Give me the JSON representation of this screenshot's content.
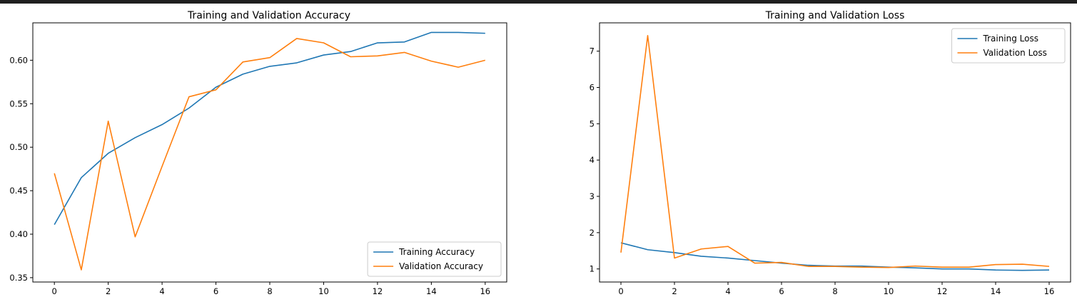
{
  "colors": {
    "training": "#1f77b4",
    "validation": "#ff7f0e"
  },
  "chart_data": [
    {
      "type": "line",
      "title": "Training and Validation Accuracy",
      "xlabel": "",
      "ylabel": "",
      "x": [
        0,
        1,
        2,
        3,
        4,
        5,
        6,
        7,
        8,
        9,
        10,
        11,
        12,
        13,
        14,
        15,
        16
      ],
      "xlim": [
        -0.8,
        16.8
      ],
      "ylim": [
        0.345,
        0.643
      ],
      "xticks": [
        0,
        2,
        4,
        6,
        8,
        10,
        12,
        14,
        16
      ],
      "xtick_labels": [
        "0",
        "2",
        "4",
        "6",
        "8",
        "10",
        "12",
        "14",
        "16"
      ],
      "yticks": [
        0.35,
        0.4,
        0.45,
        0.5,
        0.55,
        0.6
      ],
      "ytick_labels": [
        "0.35",
        "0.40",
        "0.45",
        "0.50",
        "0.55",
        "0.60"
      ],
      "legend_position": "lower-right",
      "series": [
        {
          "name": "Training Accuracy",
          "color_key": "training",
          "values": [
            0.411,
            0.465,
            0.493,
            0.511,
            0.526,
            0.545,
            0.569,
            0.584,
            0.593,
            0.597,
            0.606,
            0.61,
            0.62,
            0.621,
            0.632,
            0.632,
            0.631
          ]
        },
        {
          "name": "Validation Accuracy",
          "color_key": "validation",
          "values": [
            0.47,
            0.359,
            0.53,
            0.397,
            0.478,
            0.558,
            0.566,
            0.598,
            0.603,
            0.625,
            0.62,
            0.604,
            0.605,
            0.609,
            0.599,
            0.592,
            0.6
          ]
        }
      ]
    },
    {
      "type": "line",
      "title": "Training and Validation Loss",
      "xlabel": "",
      "ylabel": "",
      "x": [
        0,
        1,
        2,
        3,
        4,
        5,
        6,
        7,
        8,
        9,
        10,
        11,
        12,
        13,
        14,
        15,
        16
      ],
      "xlim": [
        -0.8,
        16.8
      ],
      "ylim": [
        0.64,
        7.78
      ],
      "xticks": [
        0,
        2,
        4,
        6,
        8,
        10,
        12,
        14,
        16
      ],
      "xtick_labels": [
        "0",
        "2",
        "4",
        "6",
        "8",
        "10",
        "12",
        "14",
        "16"
      ],
      "yticks": [
        1,
        2,
        3,
        4,
        5,
        6,
        7
      ],
      "ytick_labels": [
        "1",
        "2",
        "3",
        "4",
        "5",
        "6",
        "7"
      ],
      "legend_position": "upper-right",
      "series": [
        {
          "name": "Training Loss",
          "color_key": "training",
          "values": [
            1.72,
            1.53,
            1.45,
            1.35,
            1.3,
            1.23,
            1.16,
            1.1,
            1.08,
            1.08,
            1.05,
            1.03,
            1.0,
            1.0,
            0.97,
            0.96,
            0.97
          ]
        },
        {
          "name": "Validation Loss",
          "color_key": "validation",
          "values": [
            1.45,
            7.43,
            1.3,
            1.55,
            1.62,
            1.16,
            1.18,
            1.07,
            1.07,
            1.05,
            1.04,
            1.08,
            1.05,
            1.05,
            1.12,
            1.13,
            1.07
          ]
        }
      ]
    }
  ]
}
